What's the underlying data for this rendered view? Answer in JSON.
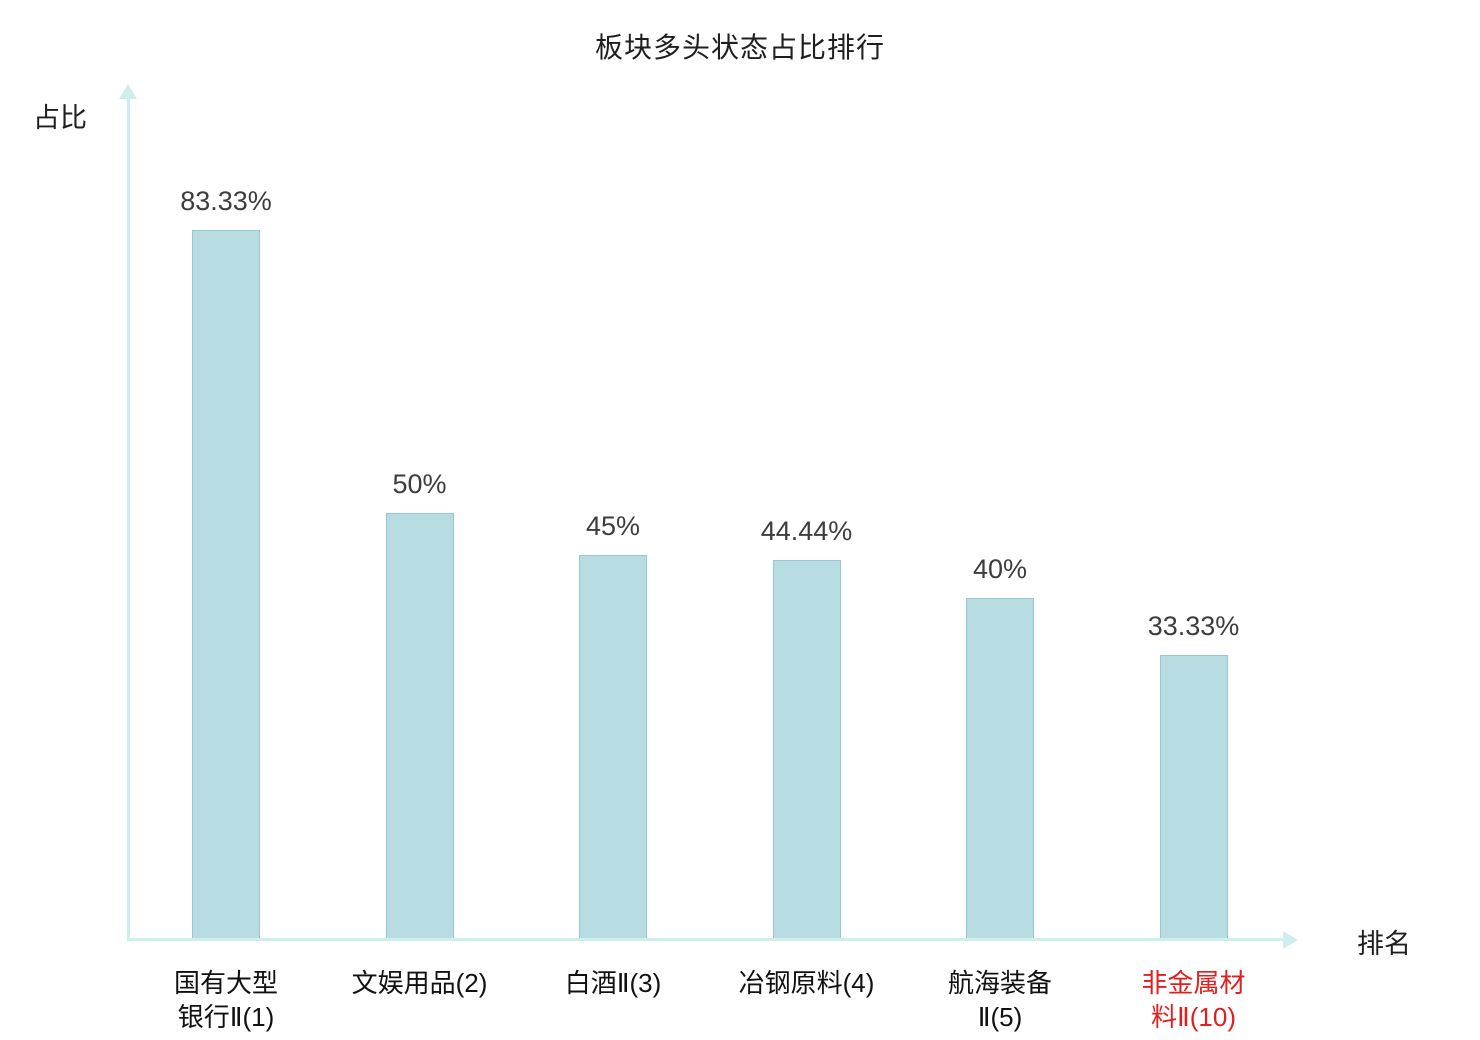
{
  "title": "板块多头状态占比排行",
  "axes": {
    "y_label": "占比",
    "x_label": "排名"
  },
  "colors": {
    "bar_fill": "#b7dde3",
    "bar_border": "#96c9d1",
    "axis": "#cdeeec",
    "text": "#1f1f1f",
    "value_label": "#3d3d3d",
    "highlight": "#e02020"
  },
  "chart_data": {
    "type": "bar",
    "title": "板块多头状态占比排行",
    "xlabel": "排名",
    "ylabel": "占比",
    "ylim": [
      0,
      100
    ],
    "grid": false,
    "legend": false,
    "categories": [
      "国有大型银行Ⅱ(1)",
      "文娱用品(2)",
      "白酒Ⅱ(3)",
      "冶钢原料(4)",
      "航海装备Ⅱ(5)",
      "非金属材料Ⅱ(10)"
    ],
    "category_lines": [
      [
        "国有大型",
        "银行Ⅱ(1)"
      ],
      [
        "文娱用品(2)"
      ],
      [
        "白酒Ⅱ(3)"
      ],
      [
        "冶钢原料(4)"
      ],
      [
        "航海装备",
        "Ⅱ(5)"
      ],
      [
        "非金属材",
        "料Ⅱ(10)"
      ]
    ],
    "values": [
      83.33,
      50,
      45,
      44.44,
      40,
      33.33
    ],
    "value_labels": [
      "83.33%",
      "50%",
      "45%",
      "44.44%",
      "40%",
      "33.33%"
    ],
    "highlight_index": 5
  }
}
